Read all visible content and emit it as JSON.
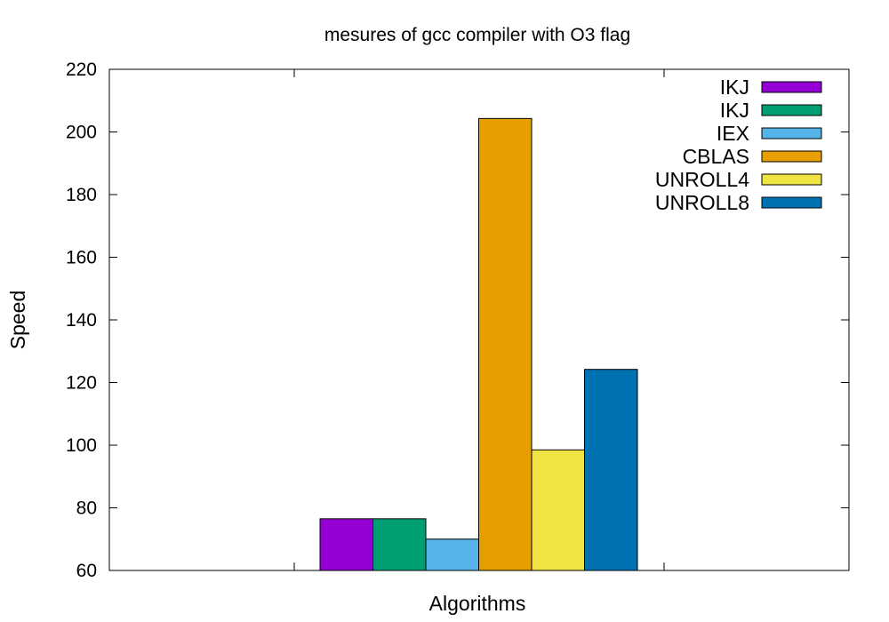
{
  "chart_data": {
    "type": "bar",
    "title": "mesures of gcc compiler with O3 flag",
    "xlabel": "Algorithms",
    "ylabel": "Speed",
    "ylim": [
      60,
      220
    ],
    "yticks": [
      60,
      80,
      100,
      120,
      140,
      160,
      180,
      200,
      220
    ],
    "grid": false,
    "legend_position": "top-right",
    "series": [
      {
        "name": "IKJ",
        "value": 76.5,
        "color": "#9400d3"
      },
      {
        "name": "IKJ",
        "value": 76.5,
        "color": "#009e73"
      },
      {
        "name": "IEX",
        "value": 70.0,
        "color": "#56b4e9"
      },
      {
        "name": "CBLAS",
        "value": 204.3,
        "color": "#e69f00"
      },
      {
        "name": "UNROLL4",
        "value": 98.5,
        "color": "#f0e442"
      },
      {
        "name": "UNROLL8",
        "value": 124.2,
        "color": "#0072b2"
      }
    ]
  }
}
